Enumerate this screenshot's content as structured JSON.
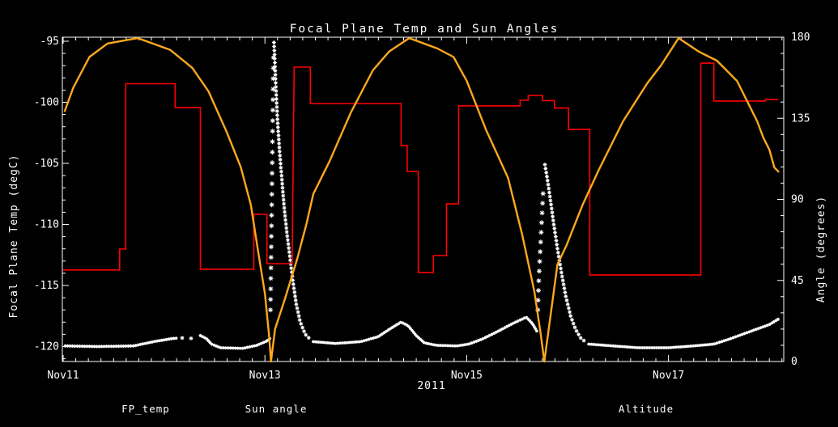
{
  "title": "Focal Plane Temp and Sun Angles",
  "axes": {
    "x": {
      "label": "2011",
      "tick_labels": [
        "Nov11",
        "Nov13",
        "Nov15",
        "Nov17"
      ],
      "tick_days": [
        0,
        2,
        4,
        6
      ],
      "minor_step_days": 0.125,
      "range_days": [
        0,
        7.14
      ]
    },
    "y_left": {
      "label": "Focal Plane Temp (degC)",
      "ticks": [
        -95,
        -100,
        -105,
        -110,
        -115,
        -120
      ],
      "minor_step": 1,
      "range": [
        -121.2,
        -94.7
      ]
    },
    "y_right": {
      "label": "Angle (degrees)",
      "ticks": [
        0,
        45,
        90,
        135,
        180
      ],
      "minor_step": 9,
      "range": [
        0,
        180
      ]
    }
  },
  "legend": [
    {
      "label": "FP_temp",
      "color": "#ffffff"
    },
    {
      "label": "Sun angle",
      "color": "#ff0000"
    },
    {
      "label": "Altitude",
      "color": "#ffa81e"
    }
  ],
  "colors": {
    "background": "#000000",
    "frame": "#ffffff",
    "fp_temp": "#ffffff",
    "sun_angle": "#ff0000",
    "altitude": "#ffa81e"
  },
  "chart_data": {
    "type": "line",
    "title": "Focal Plane Temp and Sun Angles",
    "x_unit": "days since Nov 11 2011 00:00",
    "grid": false,
    "legend_position": "bottom",
    "series": [
      {
        "name": "FP_temp",
        "axis": "left",
        "style": "asterisk-scatter",
        "unit": "degC",
        "segments": [
          {
            "gap": 3,
            "r": 2.0,
            "pts": [
              [
                0.02,
                -119.95
              ],
              [
                0.35,
                -120.0
              ],
              [
                0.7,
                -119.95
              ],
              [
                0.78,
                -119.8
              ],
              [
                0.9,
                -119.6
              ],
              [
                1.08,
                -119.35
              ],
              [
                1.14,
                -119.3
              ]
            ]
          },
          {
            "gap": 11,
            "r": 2.4,
            "pts": [
              [
                1.18,
                -119.3
              ],
              [
                1.26,
                -119.35
              ],
              [
                1.33,
                -119.2
              ]
            ]
          },
          {
            "gap": 3,
            "r": 2.0,
            "pts": [
              [
                1.36,
                -119.1
              ],
              [
                1.42,
                -119.35
              ],
              [
                1.47,
                -119.8
              ],
              [
                1.56,
                -120.1
              ],
              [
                1.78,
                -120.15
              ],
              [
                1.92,
                -119.9
              ],
              [
                2.02,
                -119.55
              ],
              [
                2.055,
                -119.3
              ]
            ]
          },
          {
            "gap": 13,
            "r": 3.0,
            "pts": [
              [
                2.055,
                -117.0
              ],
              [
                2.06,
                -113.5
              ],
              [
                2.065,
                -110.0
              ],
              [
                2.07,
                -106.5
              ],
              [
                2.075,
                -103.0
              ],
              [
                2.08,
                -99.5
              ],
              [
                2.085,
                -96.3
              ]
            ]
          },
          {
            "gap": 5,
            "r": 2.4,
            "pts": [
              [
                2.09,
                -95.1
              ],
              [
                2.1,
                -97.0
              ],
              [
                2.11,
                -99.0
              ],
              [
                2.125,
                -101.5
              ],
              [
                2.145,
                -104.0
              ],
              [
                2.17,
                -106.5
              ],
              [
                2.19,
                -108.5
              ],
              [
                2.215,
                -110.5
              ],
              [
                2.245,
                -112.5
              ],
              [
                2.275,
                -114.5
              ],
              [
                2.31,
                -116.5
              ],
              [
                2.35,
                -118.0
              ],
              [
                2.4,
                -119.0
              ],
              [
                2.46,
                -119.5
              ]
            ]
          },
          {
            "gap": 3,
            "r": 2.0,
            "pts": [
              [
                2.48,
                -119.6
              ],
              [
                2.7,
                -119.75
              ],
              [
                2.95,
                -119.6
              ],
              [
                3.12,
                -119.2
              ],
              [
                3.25,
                -118.5
              ],
              [
                3.35,
                -118.0
              ],
              [
                3.42,
                -118.3
              ],
              [
                3.5,
                -119.1
              ],
              [
                3.58,
                -119.7
              ],
              [
                3.7,
                -119.9
              ],
              [
                3.9,
                -119.95
              ],
              [
                4.02,
                -119.8
              ],
              [
                4.15,
                -119.4
              ],
              [
                4.3,
                -118.8
              ],
              [
                4.46,
                -118.1
              ],
              [
                4.59,
                -117.6
              ],
              [
                4.65,
                -118.1
              ],
              [
                4.7,
                -118.8
              ]
            ]
          },
          {
            "gap": 12,
            "r": 3.0,
            "pts": [
              [
                4.705,
                -117.0
              ],
              [
                4.715,
                -114.5
              ],
              [
                4.73,
                -112.0
              ],
              [
                4.745,
                -109.5
              ],
              [
                4.76,
                -107.0
              ]
            ]
          },
          {
            "gap": 5,
            "r": 2.4,
            "pts": [
              [
                4.775,
                -105.1
              ],
              [
                4.8,
                -106.3
              ],
              [
                4.83,
                -108.0
              ],
              [
                4.86,
                -109.8
              ],
              [
                4.9,
                -112.0
              ],
              [
                4.94,
                -114.0
              ],
              [
                4.98,
                -115.8
              ],
              [
                5.03,
                -117.5
              ],
              [
                5.08,
                -118.6
              ],
              [
                5.13,
                -119.3
              ],
              [
                5.19,
                -119.7
              ]
            ]
          },
          {
            "gap": 3,
            "r": 2.0,
            "pts": [
              [
                5.21,
                -119.8
              ],
              [
                5.45,
                -119.95
              ],
              [
                5.7,
                -120.1
              ],
              [
                6.0,
                -120.1
              ],
              [
                6.25,
                -119.95
              ],
              [
                6.45,
                -119.8
              ],
              [
                6.6,
                -119.4
              ],
              [
                6.8,
                -118.8
              ],
              [
                7.0,
                -118.2
              ],
              [
                7.09,
                -117.75
              ]
            ]
          }
        ]
      },
      {
        "name": "Sun angle",
        "axis": "right",
        "style": "step",
        "unit": "degrees",
        "steps": [
          [
            0.0,
            0.56,
            50.8
          ],
          [
            0.56,
            0.62,
            62.4
          ],
          [
            0.62,
            1.11,
            154.2
          ],
          [
            1.11,
            1.36,
            141.0
          ],
          [
            1.36,
            1.89,
            51.2
          ],
          [
            1.89,
            2.02,
            81.7
          ],
          [
            2.02,
            2.27,
            54.3
          ],
          [
            2.29,
            2.45,
            163.4
          ],
          [
            2.45,
            3.35,
            143.2
          ],
          [
            3.35,
            3.41,
            119.9
          ],
          [
            3.41,
            3.52,
            105.5
          ],
          [
            3.52,
            3.67,
            49.4
          ],
          [
            3.67,
            3.8,
            58.8
          ],
          [
            3.8,
            3.92,
            87.5
          ],
          [
            3.92,
            4.53,
            141.9
          ],
          [
            4.53,
            4.61,
            145.0
          ],
          [
            4.61,
            4.75,
            147.7
          ],
          [
            4.75,
            4.87,
            144.8
          ],
          [
            4.87,
            5.01,
            140.7
          ],
          [
            5.01,
            5.22,
            128.8
          ],
          [
            5.22,
            6.32,
            48.0
          ],
          [
            6.32,
            6.45,
            165.6
          ],
          [
            6.45,
            6.96,
            144.6
          ],
          [
            6.96,
            7.09,
            145.4
          ]
        ]
      },
      {
        "name": "Altitude",
        "axis": "right",
        "style": "line",
        "unit": "degrees",
        "arcs": [
          [
            [
              0.016,
              139
            ],
            [
              0.1,
              152
            ],
            [
              0.26,
              169
            ],
            [
              0.44,
              176.5
            ],
            [
              0.74,
              179.5
            ],
            [
              1.06,
              173
            ],
            [
              1.28,
              163
            ],
            [
              1.44,
              150
            ],
            [
              1.62,
              127.5
            ],
            [
              1.76,
              108
            ],
            [
              1.86,
              87
            ],
            [
              1.93,
              62
            ],
            [
              2.0,
              37.7
            ],
            [
              2.04,
              15
            ],
            [
              2.06,
              0
            ]
          ],
          [
            [
              2.06,
              0
            ],
            [
              2.1,
              18
            ],
            [
              2.2,
              35
            ],
            [
              2.32,
              57
            ],
            [
              2.41,
              76
            ],
            [
              2.48,
              93
            ],
            [
              2.64,
              111
            ],
            [
              2.85,
              138
            ],
            [
              3.07,
              161.6
            ],
            [
              3.23,
              172
            ],
            [
              3.43,
              179.5
            ],
            [
              3.71,
              173.7
            ],
            [
              3.87,
              169
            ],
            [
              4.0,
              155.8
            ],
            [
              4.19,
              128.8
            ],
            [
              4.41,
              101.9
            ],
            [
              4.55,
              70.5
            ],
            [
              4.67,
              39
            ],
            [
              4.73,
              16.6
            ],
            [
              4.77,
              0
            ]
          ],
          [
            [
              4.77,
              0
            ],
            [
              4.9,
              53.9
            ],
            [
              4.99,
              64.6
            ],
            [
              5.15,
              87.1
            ],
            [
              5.31,
              106.4
            ],
            [
              5.55,
              133.3
            ],
            [
              5.79,
              154.4
            ],
            [
              5.93,
              164.7
            ],
            [
              6.1,
              179.5
            ],
            [
              6.3,
              172
            ],
            [
              6.48,
              167
            ],
            [
              6.68,
              155.7
            ],
            [
              6.88,
              133.3
            ],
            [
              6.94,
              124.3
            ],
            [
              7.0,
              117.6
            ],
            [
              7.05,
              107.7
            ],
            [
              7.09,
              105.4
            ]
          ]
        ]
      }
    ]
  }
}
